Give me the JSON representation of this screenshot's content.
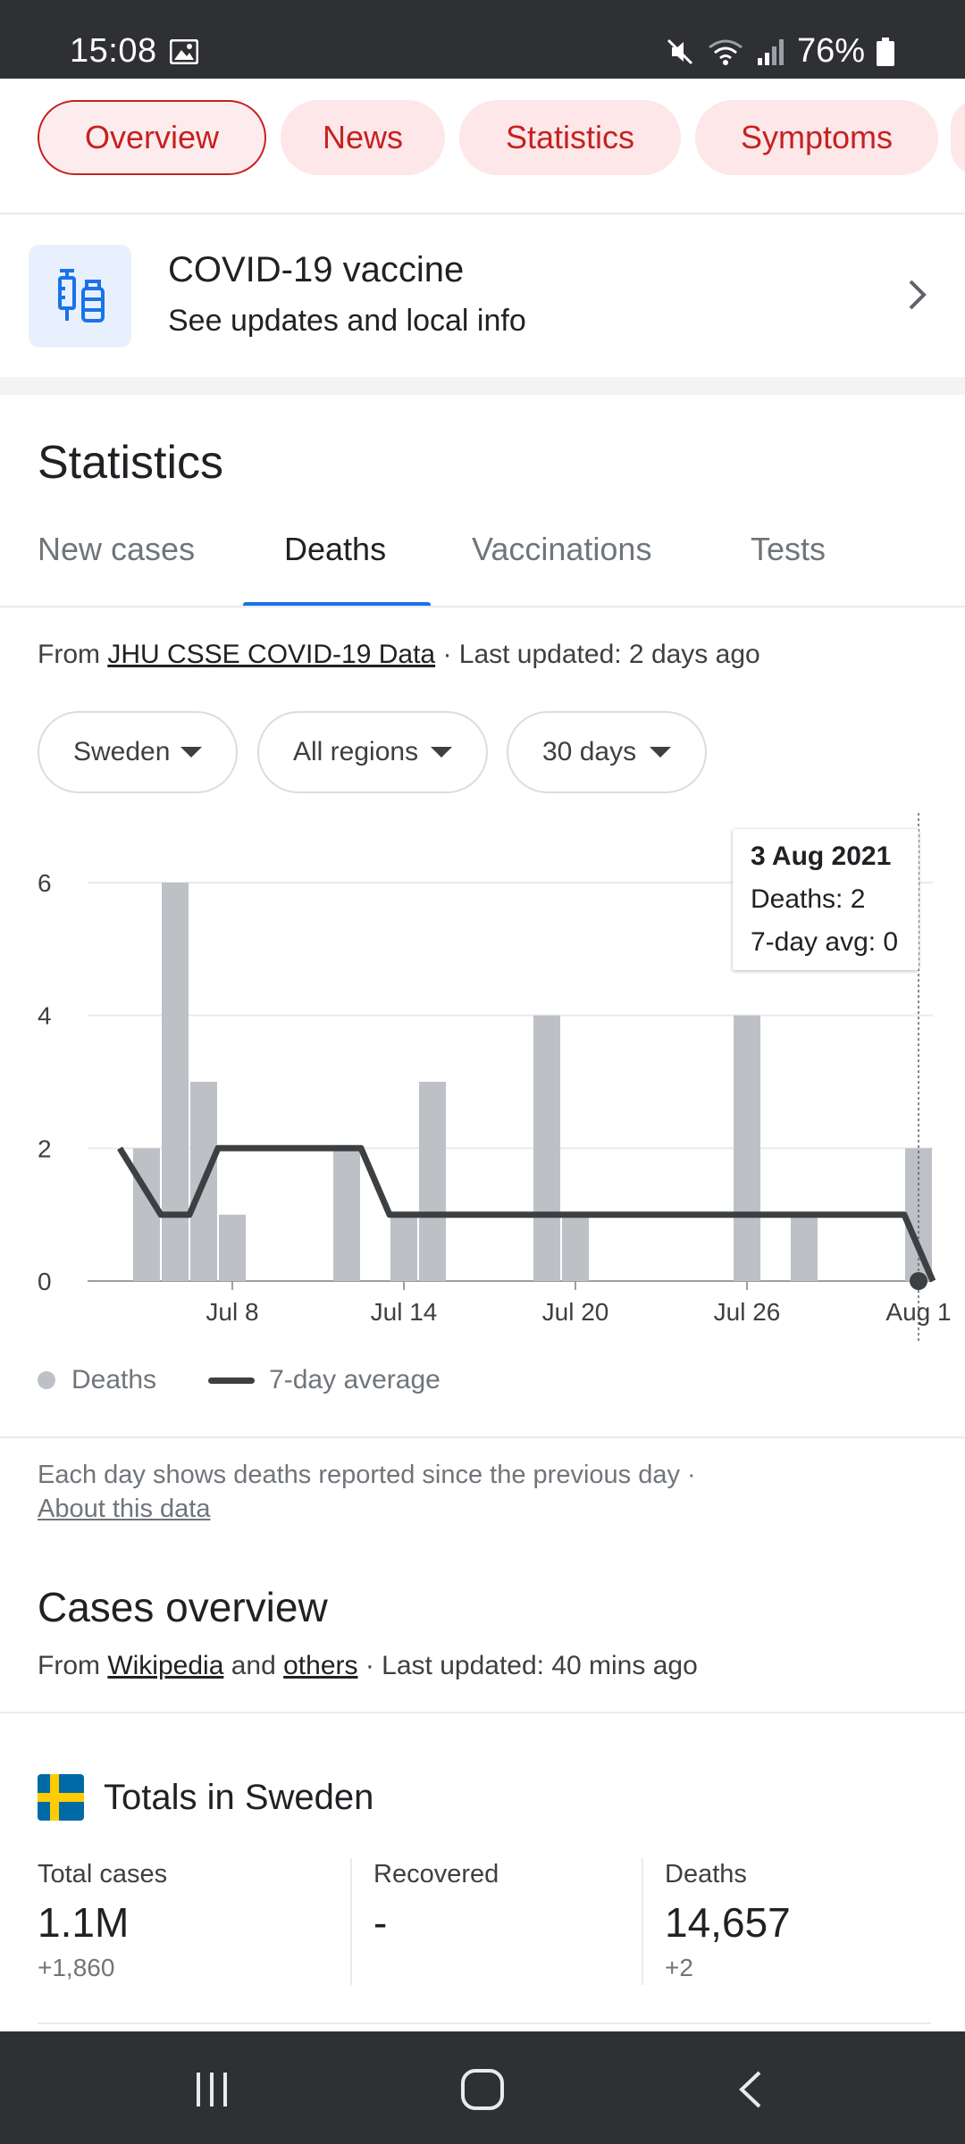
{
  "status_bar": {
    "time": "15:08",
    "battery": "76%"
  },
  "top_chips": [
    {
      "label": "Overview",
      "active": true
    },
    {
      "label": "News",
      "active": false
    },
    {
      "label": "Statistics",
      "active": false
    },
    {
      "label": "Symptoms",
      "active": false
    }
  ],
  "vaccine_card": {
    "title": "COVID-19 vaccine",
    "subtitle": "See updates and local info"
  },
  "statistics": {
    "title": "Statistics",
    "tabs": [
      {
        "label": "New cases",
        "active": false
      },
      {
        "label": "Deaths",
        "active": true
      },
      {
        "label": "Vaccinations",
        "active": false
      },
      {
        "label": "Tests",
        "active": false
      }
    ],
    "source_prefix": "From ",
    "source_link": "JHU CSSE COVID-19 Data",
    "source_suffix": " · Last updated: 2 days ago",
    "filters": {
      "country": "Sweden",
      "region": "All regions",
      "range": "30 days"
    },
    "tooltip": {
      "date": "3 Aug 2021",
      "deaths": "Deaths: 2",
      "avg": "7-day avg: 0"
    },
    "legend": {
      "deaths": "Deaths",
      "average": "7-day average"
    },
    "note_text": "Each day shows deaths reported since the previous day  ·",
    "note_link": "About this data"
  },
  "chart_data": {
    "type": "bar",
    "ylim": [
      0,
      6
    ],
    "y_ticks": [
      0,
      2,
      4,
      6
    ],
    "x_ticks": [
      "Jul 8",
      "Jul 14",
      "Jul 20",
      "Jul 26",
      "Aug 1"
    ],
    "x_tick_day_index": [
      3,
      9,
      15,
      21,
      27
    ],
    "grid": true,
    "series": [
      {
        "name": "Deaths",
        "type": "bar",
        "color": "#bdc1c6",
        "values": [
          2,
          6,
          3,
          1,
          0,
          0,
          0,
          2,
          0,
          1,
          3,
          0,
          0,
          0,
          4,
          1,
          0,
          0,
          0,
          0,
          0,
          4,
          0,
          1,
          0,
          0,
          0,
          2
        ]
      },
      {
        "name": "7-day average",
        "type": "line",
        "color": "#3c4043",
        "start_index": -0.5,
        "values": [
          2,
          1,
          1,
          2,
          2,
          2,
          2,
          2,
          2,
          1,
          1,
          1,
          1,
          1,
          1,
          1,
          1,
          1,
          1,
          1,
          1,
          1,
          1,
          1,
          1,
          1,
          1,
          1,
          0
        ]
      }
    ]
  },
  "cases_overview": {
    "title": "Cases overview",
    "source_prefix": "From ",
    "link1": "Wikipedia",
    "middle": " and ",
    "link2": "others",
    "suffix": " · Last updated: 40 mins ago"
  },
  "totals": {
    "title": "Totals in Sweden",
    "columns": [
      {
        "label": "Total cases",
        "value": "1.1M",
        "delta": "+1,860"
      },
      {
        "label": "Recovered",
        "value": "-",
        "delta": ""
      },
      {
        "label": "Deaths",
        "value": "14,657",
        "delta": "+2"
      }
    ]
  },
  "colors": {
    "accent_red": "#c5221f",
    "chip_bg": "#fde7e9",
    "tab_blue": "#1a73e8",
    "status_bar": "#2f3033"
  },
  "icons": {
    "vaccine": "syringe-vial-icon",
    "chevron": "chevron-right-icon",
    "flag": "sweden-flag-icon"
  }
}
